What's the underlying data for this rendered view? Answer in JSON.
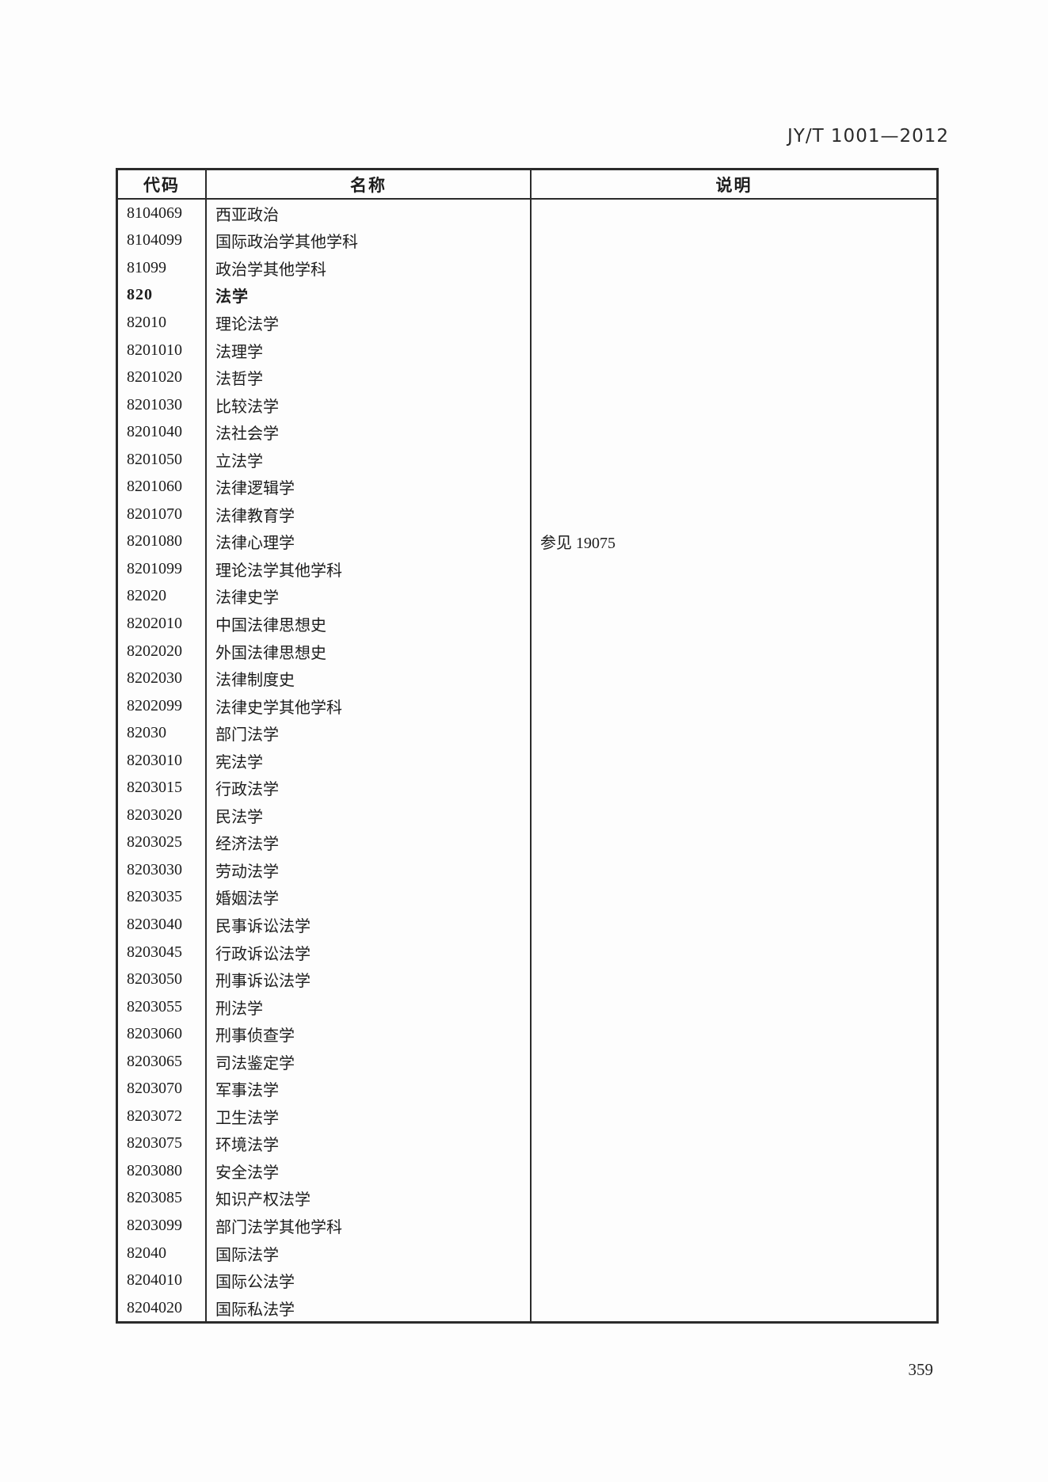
{
  "page": {
    "header_right": "JY/T 1001—2012",
    "page_number": "359"
  },
  "table": {
    "headers": {
      "code": "代码",
      "name": "名称",
      "note": "说明"
    },
    "rows": [
      {
        "code": "8104069",
        "name": "西亚政治",
        "note": "",
        "bold": false
      },
      {
        "code": "8104099",
        "name": "国际政治学其他学科",
        "note": "",
        "bold": false
      },
      {
        "code": "81099",
        "name": "政治学其他学科",
        "note": "",
        "bold": false
      },
      {
        "code": "820",
        "name": "法学",
        "note": "",
        "bold": true
      },
      {
        "code": "82010",
        "name": "理论法学",
        "note": "",
        "bold": false
      },
      {
        "code": "8201010",
        "name": "法理学",
        "note": "",
        "bold": false
      },
      {
        "code": "8201020",
        "name": "法哲学",
        "note": "",
        "bold": false
      },
      {
        "code": "8201030",
        "name": "比较法学",
        "note": "",
        "bold": false
      },
      {
        "code": "8201040",
        "name": "法社会学",
        "note": "",
        "bold": false
      },
      {
        "code": "8201050",
        "name": "立法学",
        "note": "",
        "bold": false
      },
      {
        "code": "8201060",
        "name": "法律逻辑学",
        "note": "",
        "bold": false
      },
      {
        "code": "8201070",
        "name": "法律教育学",
        "note": "",
        "bold": false
      },
      {
        "code": "8201080",
        "name": "法律心理学",
        "note": "参见 19075",
        "bold": false
      },
      {
        "code": "8201099",
        "name": "理论法学其他学科",
        "note": "",
        "bold": false
      },
      {
        "code": "82020",
        "name": "法律史学",
        "note": "",
        "bold": false
      },
      {
        "code": "8202010",
        "name": "中国法律思想史",
        "note": "",
        "bold": false
      },
      {
        "code": "8202020",
        "name": "外国法律思想史",
        "note": "",
        "bold": false
      },
      {
        "code": "8202030",
        "name": "法律制度史",
        "note": "",
        "bold": false
      },
      {
        "code": "8202099",
        "name": "法律史学其他学科",
        "note": "",
        "bold": false
      },
      {
        "code": "82030",
        "name": "部门法学",
        "note": "",
        "bold": false
      },
      {
        "code": "8203010",
        "name": "宪法学",
        "note": "",
        "bold": false
      },
      {
        "code": "8203015",
        "name": "行政法学",
        "note": "",
        "bold": false
      },
      {
        "code": "8203020",
        "name": "民法学",
        "note": "",
        "bold": false
      },
      {
        "code": "8203025",
        "name": "经济法学",
        "note": "",
        "bold": false
      },
      {
        "code": "8203030",
        "name": "劳动法学",
        "note": "",
        "bold": false
      },
      {
        "code": "8203035",
        "name": "婚姻法学",
        "note": "",
        "bold": false
      },
      {
        "code": "8203040",
        "name": "民事诉讼法学",
        "note": "",
        "bold": false
      },
      {
        "code": "8203045",
        "name": "行政诉讼法学",
        "note": "",
        "bold": false
      },
      {
        "code": "8203050",
        "name": "刑事诉讼法学",
        "note": "",
        "bold": false
      },
      {
        "code": "8203055",
        "name": "刑法学",
        "note": "",
        "bold": false
      },
      {
        "code": "8203060",
        "name": "刑事侦查学",
        "note": "",
        "bold": false
      },
      {
        "code": "8203065",
        "name": "司法鉴定学",
        "note": "",
        "bold": false
      },
      {
        "code": "8203070",
        "name": "军事法学",
        "note": "",
        "bold": false
      },
      {
        "code": "8203072",
        "name": "卫生法学",
        "note": "",
        "bold": false
      },
      {
        "code": "8203075",
        "name": "环境法学",
        "note": "",
        "bold": false
      },
      {
        "code": "8203080",
        "name": "安全法学",
        "note": "",
        "bold": false
      },
      {
        "code": "8203085",
        "name": "知识产权法学",
        "note": "",
        "bold": false
      },
      {
        "code": "8203099",
        "name": "部门法学其他学科",
        "note": "",
        "bold": false
      },
      {
        "code": "82040",
        "name": "国际法学",
        "note": "",
        "bold": false
      },
      {
        "code": "8204010",
        "name": "国际公法学",
        "note": "",
        "bold": false
      },
      {
        "code": "8204020",
        "name": "国际私法学",
        "note": "",
        "bold": false
      }
    ]
  }
}
